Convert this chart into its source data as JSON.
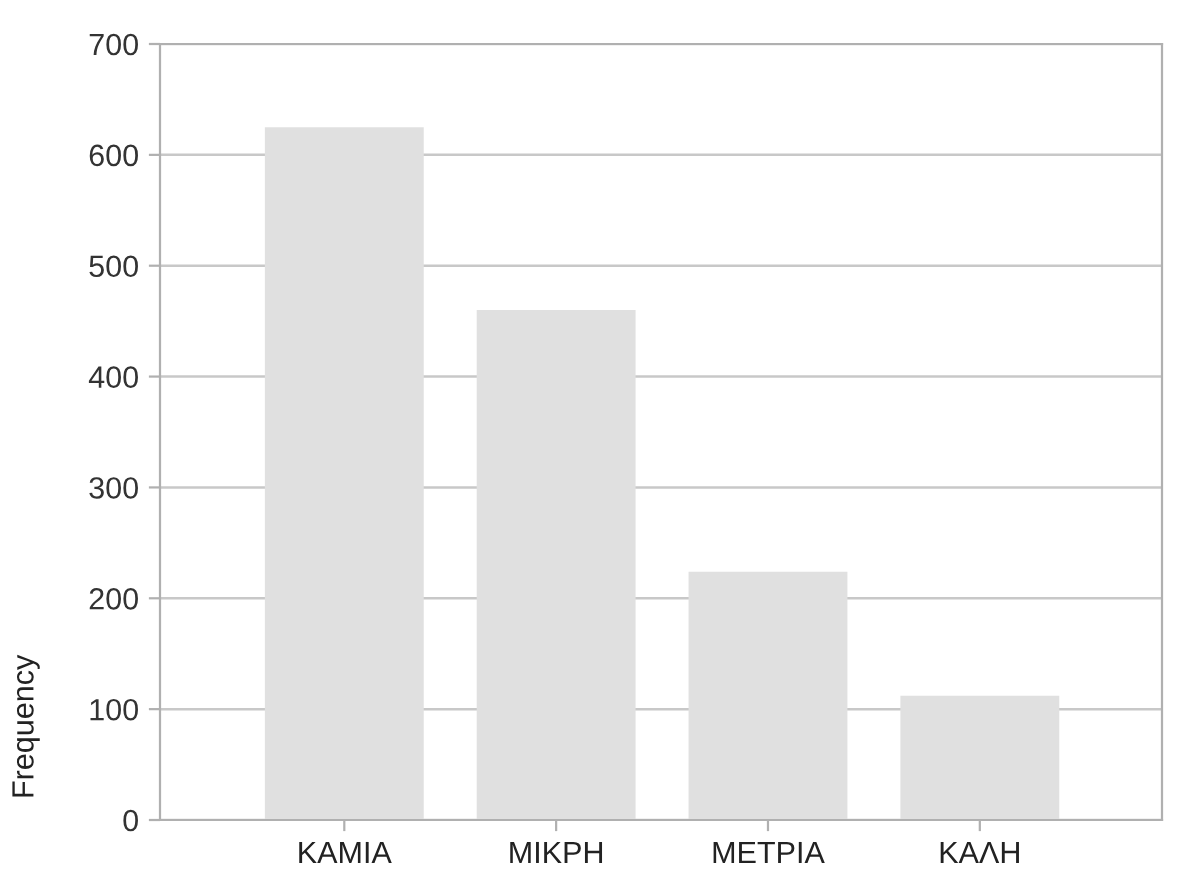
{
  "chart_data": {
    "type": "bar",
    "ylabel": "Frequency",
    "categories": [
      "ΚΑΜΙΑ",
      "ΜΙΚΡΗ",
      "ΜΕΤΡΙΑ",
      "ΚΑΛΗ"
    ],
    "values": [
      625,
      460,
      224,
      112
    ],
    "color": "#e0e0e0",
    "ylim": [
      0,
      700
    ],
    "yticks": [
      0,
      100,
      200,
      300,
      400,
      500,
      600,
      700
    ],
    "grid": "y"
  }
}
